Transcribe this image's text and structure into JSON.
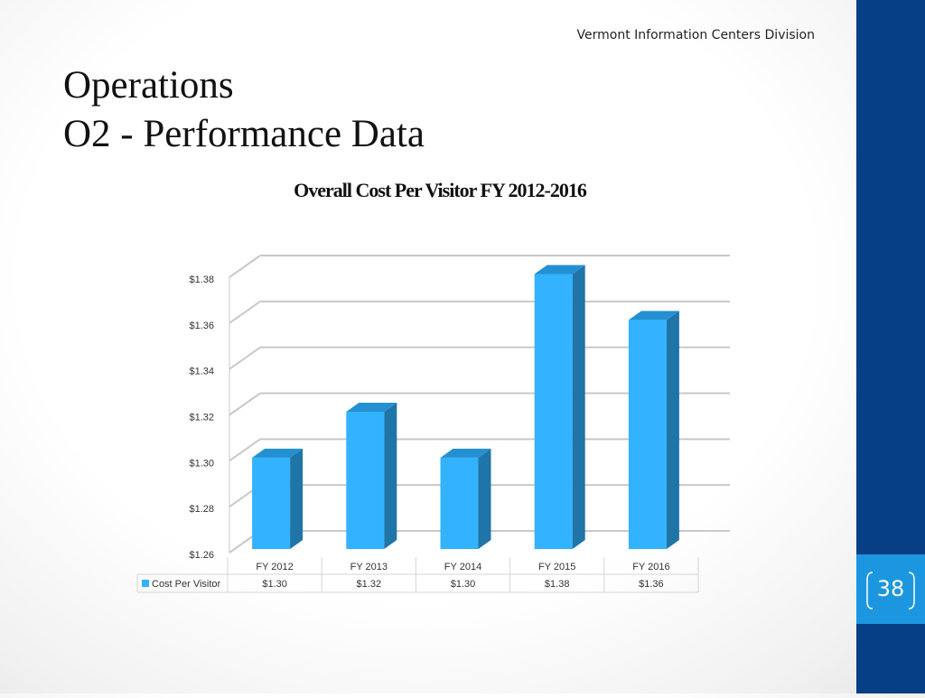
{
  "header": {
    "org_name": "Vermont Information Centers Division",
    "title_line1": "Operations",
    "title_line2": "O2 - Performance Data"
  },
  "page_number": "38",
  "colors": {
    "sidebar": "#073f86",
    "badge": "#1c97df",
    "bar_front": "#33b2ff",
    "bar_side": "#1f74a8",
    "bar_top": "#2490d2"
  },
  "chart_data": {
    "type": "bar",
    "title": "Overall Cost Per Visitor FY 2012-2016",
    "categories": [
      "FY 2012",
      "FY 2013",
      "FY 2014",
      "FY 2015",
      "FY 2016"
    ],
    "series": [
      {
        "name": "Cost Per Visitor",
        "values": [
          1.3,
          1.32,
          1.3,
          1.38,
          1.36
        ]
      }
    ],
    "value_labels": [
      "$1.30",
      "$1.32",
      "$1.30",
      "$1.38",
      "$1.36"
    ],
    "y_ticks": [
      "$1.26",
      "$1.28",
      "$1.30",
      "$1.32",
      "$1.34",
      "$1.36",
      "$1.38"
    ],
    "ylim": [
      1.26,
      1.38
    ],
    "grid": true,
    "style": "3d-column",
    "legend": "data-table-below"
  }
}
